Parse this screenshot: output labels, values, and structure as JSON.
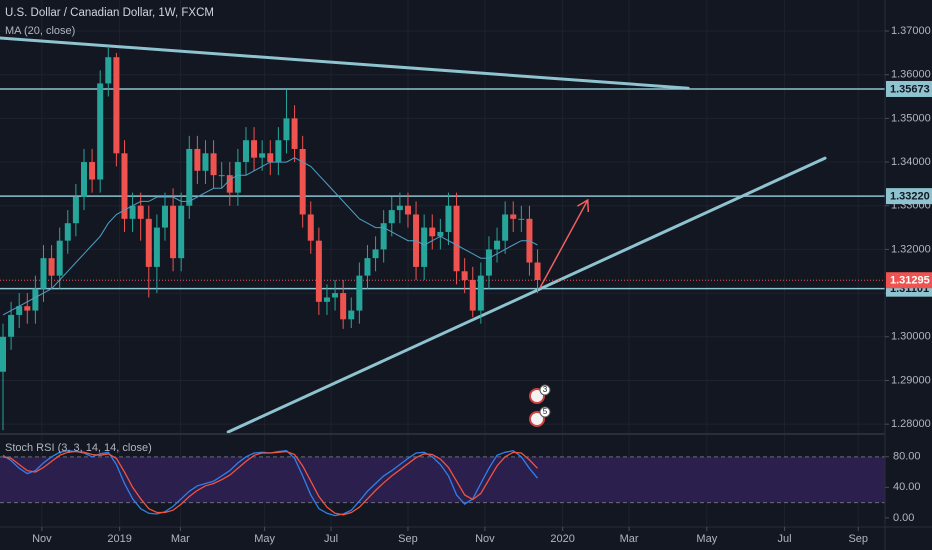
{
  "chart_data": [
    {
      "type": "candlestick",
      "title": "U.S. Dollar / Canadian Dollar, 1W, FXCM",
      "x": [
        0,
        1,
        2,
        3,
        4,
        5,
        6,
        7,
        8,
        9,
        10,
        11,
        12,
        13,
        14,
        15,
        16,
        17,
        18,
        19,
        20,
        21,
        22,
        23,
        24,
        25,
        26,
        27,
        28,
        29,
        30,
        31,
        32,
        33,
        34,
        35,
        36,
        37,
        38,
        39,
        40,
        41,
        42,
        43,
        44,
        45,
        46,
        47,
        48,
        49,
        50,
        51,
        52,
        53,
        54,
        55,
        56,
        57,
        58,
        59,
        60,
        61,
        62,
        63,
        64,
        65,
        66
      ],
      "open": [
        1.292,
        1.3,
        1.305,
        1.307,
        1.306,
        1.311,
        1.318,
        1.314,
        1.322,
        1.326,
        1.332,
        1.34,
        1.336,
        1.358,
        1.364,
        1.342,
        1.327,
        1.33,
        1.327,
        1.316,
        1.325,
        1.33,
        1.318,
        1.33,
        1.343,
        1.338,
        1.342,
        1.337,
        1.337,
        1.333,
        1.34,
        1.345,
        1.341,
        1.342,
        1.34,
        1.345,
        1.35,
        1.343,
        1.328,
        1.322,
        1.308,
        1.309,
        1.31,
        1.304,
        1.306,
        1.314,
        1.318,
        1.32,
        1.326,
        1.329,
        1.33,
        1.328,
        1.316,
        1.325,
        1.323,
        1.324,
        1.33,
        1.315,
        1.313,
        1.306,
        1.314,
        1.32,
        1.322,
        1.328,
        1.327,
        1.327,
        1.317
      ],
      "high": [
        1.303,
        1.308,
        1.31,
        1.31,
        1.314,
        1.321,
        1.321,
        1.325,
        1.329,
        1.335,
        1.343,
        1.343,
        1.361,
        1.3665,
        1.365,
        1.345,
        1.333,
        1.333,
        1.33,
        1.328,
        1.333,
        1.334,
        1.333,
        1.346,
        1.346,
        1.345,
        1.345,
        1.34,
        1.34,
        1.343,
        1.348,
        1.348,
        1.345,
        1.345,
        1.348,
        1.3565,
        1.353,
        1.346,
        1.331,
        1.325,
        1.312,
        1.313,
        1.313,
        1.309,
        1.317,
        1.321,
        1.323,
        1.329,
        1.332,
        1.333,
        1.333,
        1.331,
        1.328,
        1.328,
        1.327,
        1.333,
        1.333,
        1.318,
        1.316,
        1.317,
        1.323,
        1.325,
        1.331,
        1.331,
        1.33,
        1.33,
        1.32
      ],
      "low": [
        1.2786,
        1.297,
        1.302,
        1.303,
        1.303,
        1.308,
        1.311,
        1.311,
        1.319,
        1.323,
        1.329,
        1.333,
        1.333,
        1.355,
        1.339,
        1.324,
        1.324,
        1.322,
        1.309,
        1.31,
        1.322,
        1.315,
        1.315,
        1.327,
        1.335,
        1.335,
        1.334,
        1.334,
        1.33,
        1.33,
        1.337,
        1.338,
        1.338,
        1.337,
        1.337,
        1.342,
        1.34,
        1.325,
        1.319,
        1.305,
        1.305,
        1.306,
        1.3018,
        1.302,
        1.303,
        1.311,
        1.315,
        1.317,
        1.323,
        1.326,
        1.325,
        1.313,
        1.313,
        1.32,
        1.32,
        1.321,
        1.312,
        1.31,
        1.3045,
        1.303,
        1.311,
        1.317,
        1.319,
        1.324,
        1.324,
        1.314,
        1.31
      ],
      "close": [
        1.3,
        1.305,
        1.307,
        1.306,
        1.311,
        1.318,
        1.314,
        1.322,
        1.326,
        1.332,
        1.34,
        1.336,
        1.358,
        1.364,
        1.342,
        1.327,
        1.33,
        1.327,
        1.316,
        1.325,
        1.33,
        1.318,
        1.33,
        1.343,
        1.338,
        1.342,
        1.337,
        1.337,
        1.333,
        1.34,
        1.345,
        1.341,
        1.342,
        1.34,
        1.345,
        1.35,
        1.343,
        1.328,
        1.322,
        1.308,
        1.309,
        1.31,
        1.304,
        1.306,
        1.314,
        1.318,
        1.32,
        1.326,
        1.329,
        1.33,
        1.328,
        1.316,
        1.325,
        1.323,
        1.324,
        1.33,
        1.315,
        1.313,
        1.306,
        1.314,
        1.32,
        1.322,
        1.328,
        1.327,
        1.327,
        1.317,
        1.313
      ],
      "up_color": "#26a69a",
      "down_color": "#ef5350",
      "ma": {
        "name": "MA (20, close)",
        "color": "#4f9fc4",
        "values": [
          1.305,
          1.306,
          1.307,
          1.308,
          1.309,
          1.31,
          1.311,
          1.313,
          1.315,
          1.317,
          1.319,
          1.321,
          1.323,
          1.326,
          1.328,
          1.329,
          1.33,
          1.331,
          1.331,
          1.332,
          1.332,
          1.332,
          1.331,
          1.331,
          1.332,
          1.333,
          1.334,
          1.334,
          1.336,
          1.337,
          1.337,
          1.338,
          1.339,
          1.34,
          1.34,
          1.34,
          1.341,
          1.34,
          1.339,
          1.337,
          1.335,
          1.333,
          1.331,
          1.329,
          1.327,
          1.326,
          1.325,
          1.325,
          1.324,
          1.323,
          1.322,
          1.322,
          1.321,
          1.322,
          1.323,
          1.322,
          1.321,
          1.32,
          1.319,
          1.318,
          1.318,
          1.319,
          1.32,
          1.321,
          1.322,
          1.322,
          1.321
        ]
      },
      "xlim": [
        -0.37,
        108.9
      ],
      "xticks": [
        {
          "value": 4.8,
          "label": "Nov"
        },
        {
          "value": 14.4,
          "label": "2019"
        },
        {
          "value": 21.9,
          "label": "Mar"
        },
        {
          "value": 32.3,
          "label": "May"
        },
        {
          "value": 40.5,
          "label": "Jul"
        },
        {
          "value": 50.0,
          "label": "Sep"
        },
        {
          "value": 59.5,
          "label": "Nov"
        },
        {
          "value": 69.1,
          "label": "2020"
        },
        {
          "value": 77.3,
          "label": "Mar"
        },
        {
          "value": 86.9,
          "label": "May"
        },
        {
          "value": 96.5,
          "label": "Jul"
        },
        {
          "value": 105.6,
          "label": "Sep"
        }
      ],
      "ylim": [
        1.2782,
        1.3771
      ],
      "yticks": [
        {
          "value": 1.28,
          "label": "1.28000"
        },
        {
          "value": 1.29,
          "label": "1.29000"
        },
        {
          "value": 1.3,
          "label": "1.30000"
        },
        {
          "value": 1.31,
          "label": "1.31000"
        },
        {
          "value": 1.32,
          "label": "1.32000"
        },
        {
          "value": 1.33,
          "label": "1.33000"
        },
        {
          "value": 1.34,
          "label": "1.34000"
        },
        {
          "value": 1.35,
          "label": "1.35000"
        },
        {
          "value": 1.36,
          "label": "1.36000"
        },
        {
          "value": 1.37,
          "label": "1.37000"
        }
      ],
      "grid": true,
      "levels": [
        {
          "value": 1.35673,
          "label": "1.35673"
        },
        {
          "value": 1.3322,
          "label": "1.33220"
        },
        {
          "value": 1.31101,
          "label": "1.31101"
        }
      ],
      "level_color": "#8ec3cf",
      "last_price": {
        "value": 1.31295,
        "label": "1.31295"
      },
      "trendlines": [
        {
          "x": [
            -0.37,
            84.6
          ],
          "y": [
            1.3684,
            1.3569
          ]
        },
        {
          "x": [
            27.8,
            101.5
          ],
          "y": [
            1.2782,
            1.3409
          ]
        }
      ],
      "arrow": {
        "x": [
          66.3,
          72.2
        ],
        "y": [
          1.3112,
          1.3313
        ],
        "color": "#f06060"
      },
      "events": [
        "3",
        "5"
      ]
    },
    {
      "type": "line",
      "title": "Stoch RSI (3, 3, 14, 14, close)",
      "series": [
        {
          "color": "#2f80ed",
          "values": [
            82,
            75,
            65,
            58,
            62,
            72,
            80,
            86,
            88,
            87,
            85,
            80,
            84,
            86,
            70,
            45,
            25,
            12,
            6,
            5,
            8,
            15,
            25,
            35,
            42,
            45,
            48,
            55,
            62,
            72,
            80,
            85,
            86,
            85,
            87,
            88,
            78,
            55,
            30,
            12,
            6,
            3,
            5,
            10,
            22,
            35,
            45,
            55,
            62,
            70,
            78,
            85,
            86,
            80,
            70,
            55,
            30,
            18,
            25,
            45,
            65,
            82,
            86,
            88,
            80,
            65,
            52
          ]
        },
        {
          "color": "#f0533f",
          "values": [
            80,
            78,
            70,
            62,
            60,
            66,
            74,
            82,
            86,
            87,
            86,
            83,
            82,
            84,
            78,
            60,
            40,
            25,
            12,
            7,
            7,
            10,
            18,
            28,
            36,
            42,
            45,
            50,
            56,
            65,
            74,
            82,
            85,
            85,
            86,
            87,
            83,
            68,
            48,
            28,
            14,
            6,
            4,
            7,
            14,
            25,
            36,
            46,
            55,
            63,
            71,
            79,
            84,
            83,
            77,
            66,
            48,
            30,
            24,
            32,
            50,
            68,
            80,
            86,
            85,
            76,
            65
          ]
        }
      ],
      "band": [
        20,
        80
      ],
      "band_color": "#2b1f4d",
      "ylim": [
        -12,
        106
      ],
      "yticks": [
        {
          "value": 0,
          "label": "0.00"
        },
        {
          "value": 40,
          "label": "40.00"
        },
        {
          "value": 80,
          "label": "80.00"
        }
      ]
    }
  ]
}
